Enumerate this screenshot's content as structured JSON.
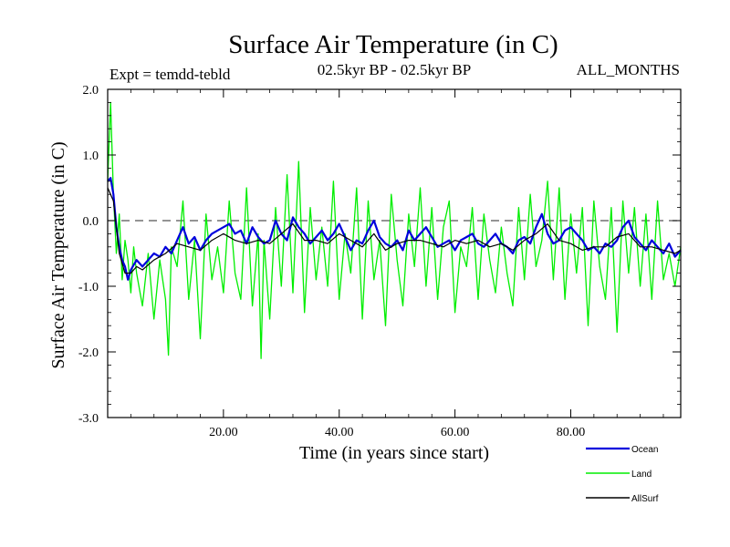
{
  "chart_data": {
    "type": "line",
    "title": "Surface Air Temperature (in C)",
    "subtitle": "02.5kyr BP - 02.5kyr BP",
    "left_note": "Expt = temdd-tebld",
    "right_note": "ALL_MONTHS",
    "xlabel": "Time (in years since start)",
    "ylabel": "Surface Air Temperature (in C)",
    "xlim": [
      0,
      99
    ],
    "ylim": [
      -3.0,
      2.0
    ],
    "x_ticks": [
      20,
      40,
      60,
      80
    ],
    "x_tick_labels": [
      "20.00",
      "40.00",
      "60.00",
      "80.00"
    ],
    "y_ticks": [
      2.0,
      1.0,
      0.0,
      -1.0,
      -2.0,
      -3.0
    ],
    "y_tick_labels": [
      "2.0",
      "1.0",
      "0.0",
      "-1.0",
      "-2.0",
      "-3.0"
    ],
    "reference_line": 0.0,
    "colors": {
      "Ocean": "#0000dd",
      "Land": "#00ee00",
      "AllSurf": "#000000",
      "axis": "#000000",
      "reference": "#555555"
    },
    "legend": [
      "Ocean",
      "Land",
      "AllSurf"
    ],
    "legend_position": "bottom-right",
    "series": [
      {
        "name": "Land",
        "x": [
          0,
          0.5,
          1,
          1.5,
          2,
          2.5,
          3,
          3.5,
          4,
          4.5,
          5,
          6,
          7,
          8,
          9,
          10,
          10.5,
          11,
          12,
          13,
          14,
          15,
          16,
          17,
          18,
          19,
          20,
          21,
          22,
          23,
          24,
          25,
          26,
          26.5,
          27,
          28,
          29,
          30,
          31,
          32,
          33,
          34,
          35,
          36,
          37,
          38,
          39,
          40,
          41,
          42,
          43,
          44,
          45,
          46,
          47,
          48,
          49,
          50,
          51,
          52,
          53,
          54,
          55,
          56,
          57,
          58,
          59,
          60,
          61,
          62,
          63,
          64,
          65,
          66,
          67,
          68,
          69,
          70,
          71,
          72,
          73,
          74,
          75,
          76,
          77,
          78,
          79,
          80,
          81,
          82,
          83,
          84,
          85,
          86,
          87,
          88,
          89,
          90,
          91,
          92,
          93,
          94,
          95,
          96,
          97,
          98,
          99
        ],
        "values": [
          0.6,
          1.8,
          0.4,
          -0.5,
          0.1,
          -0.9,
          -0.3,
          -0.6,
          -1.1,
          -0.4,
          -0.8,
          -1.3,
          -0.5,
          -1.5,
          -0.6,
          -1.2,
          -2.05,
          -0.4,
          -0.7,
          0.3,
          -1.2,
          -0.3,
          -1.8,
          0.1,
          -0.9,
          -0.4,
          -1.1,
          0.3,
          -0.8,
          -1.2,
          0.5,
          -1.3,
          -0.2,
          -2.1,
          -0.3,
          -1.5,
          0.2,
          -1.0,
          0.7,
          -1.1,
          0.9,
          -1.4,
          0.2,
          -0.9,
          -0.1,
          -1.0,
          0.6,
          -1.2,
          -0.2,
          -0.8,
          0.5,
          -1.5,
          0.3,
          -0.9,
          -0.3,
          -1.6,
          0.4,
          -0.6,
          -1.3,
          0.1,
          -0.7,
          0.5,
          -1.0,
          0.2,
          -1.2,
          -0.1,
          0.3,
          -1.4,
          -0.4,
          -0.7,
          0.2,
          -1.2,
          0.1,
          -0.6,
          -1.1,
          -0.1,
          -0.8,
          -1.3,
          0.2,
          -0.9,
          0.4,
          -0.7,
          -0.3,
          0.6,
          -0.9,
          0.5,
          -1.2,
          0.1,
          -0.8,
          0.2,
          -1.6,
          0.3,
          -0.7,
          -1.2,
          0.2,
          -1.7,
          0.3,
          -0.8,
          0.2,
          -1.0,
          0.1,
          -1.2,
          0.3,
          -0.9,
          -0.5,
          -1.0,
          -0.4
        ]
      },
      {
        "name": "Ocean",
        "x": [
          0,
          0.5,
          1,
          1.5,
          2,
          2.5,
          3,
          3.5,
          4,
          5,
          6,
          7,
          8,
          9,
          10,
          11,
          12,
          13,
          14,
          15,
          16,
          17,
          18,
          19,
          20,
          21,
          22,
          23,
          24,
          25,
          26,
          27,
          28,
          29,
          30,
          31,
          32,
          33,
          34,
          35,
          36,
          37,
          38,
          39,
          40,
          41,
          42,
          43,
          44,
          45,
          46,
          47,
          48,
          49,
          50,
          51,
          52,
          53,
          54,
          55,
          56,
          57,
          58,
          59,
          60,
          61,
          62,
          63,
          64,
          65,
          66,
          67,
          68,
          69,
          70,
          71,
          72,
          73,
          74,
          75,
          76,
          77,
          78,
          79,
          80,
          81,
          82,
          83,
          84,
          85,
          86,
          87,
          88,
          89,
          90,
          91,
          92,
          93,
          94,
          95,
          96,
          97,
          98,
          99
        ],
        "values": [
          0.6,
          0.65,
          0.4,
          -0.1,
          -0.4,
          -0.6,
          -0.7,
          -0.9,
          -0.75,
          -0.6,
          -0.7,
          -0.6,
          -0.5,
          -0.55,
          -0.4,
          -0.5,
          -0.3,
          -0.1,
          -0.35,
          -0.25,
          -0.45,
          -0.3,
          -0.2,
          -0.15,
          -0.1,
          -0.05,
          -0.2,
          -0.15,
          -0.35,
          -0.1,
          -0.25,
          -0.35,
          -0.3,
          0.0,
          -0.2,
          -0.3,
          0.05,
          -0.1,
          -0.2,
          -0.35,
          -0.25,
          -0.15,
          -0.3,
          -0.2,
          -0.05,
          -0.25,
          -0.45,
          -0.3,
          -0.35,
          -0.15,
          0.0,
          -0.25,
          -0.35,
          -0.4,
          -0.3,
          -0.45,
          -0.15,
          -0.3,
          -0.2,
          -0.1,
          -0.25,
          -0.4,
          -0.35,
          -0.3,
          -0.45,
          -0.3,
          -0.25,
          -0.2,
          -0.35,
          -0.4,
          -0.3,
          -0.2,
          -0.35,
          -0.4,
          -0.5,
          -0.3,
          -0.25,
          -0.35,
          -0.1,
          0.1,
          -0.2,
          -0.35,
          -0.3,
          -0.15,
          -0.1,
          -0.2,
          -0.3,
          -0.45,
          -0.4,
          -0.5,
          -0.35,
          -0.4,
          -0.3,
          -0.1,
          0.0,
          -0.25,
          -0.35,
          -0.45,
          -0.3,
          -0.4,
          -0.5,
          -0.35,
          -0.55,
          -0.45
        ]
      },
      {
        "name": "AllSurf",
        "x": [
          0,
          1,
          2,
          3,
          4,
          5,
          6,
          8,
          10,
          12,
          14,
          16,
          18,
          20,
          22,
          24,
          26,
          28,
          30,
          32,
          34,
          36,
          38,
          40,
          42,
          44,
          46,
          48,
          50,
          52,
          54,
          56,
          58,
          60,
          62,
          64,
          66,
          68,
          70,
          72,
          74,
          76,
          78,
          80,
          82,
          84,
          86,
          88,
          90,
          92,
          94,
          96,
          98,
          99
        ],
        "values": [
          0.5,
          0.3,
          -0.5,
          -0.8,
          -0.8,
          -0.7,
          -0.75,
          -0.6,
          -0.5,
          -0.35,
          -0.4,
          -0.45,
          -0.3,
          -0.2,
          -0.3,
          -0.35,
          -0.3,
          -0.35,
          -0.2,
          -0.05,
          -0.3,
          -0.3,
          -0.35,
          -0.2,
          -0.3,
          -0.4,
          -0.2,
          -0.45,
          -0.35,
          -0.3,
          -0.3,
          -0.35,
          -0.4,
          -0.3,
          -0.35,
          -0.3,
          -0.4,
          -0.35,
          -0.45,
          -0.3,
          -0.2,
          -0.05,
          -0.3,
          -0.35,
          -0.45,
          -0.4,
          -0.4,
          -0.25,
          -0.2,
          -0.4,
          -0.4,
          -0.45,
          -0.5,
          -0.45
        ]
      }
    ]
  }
}
